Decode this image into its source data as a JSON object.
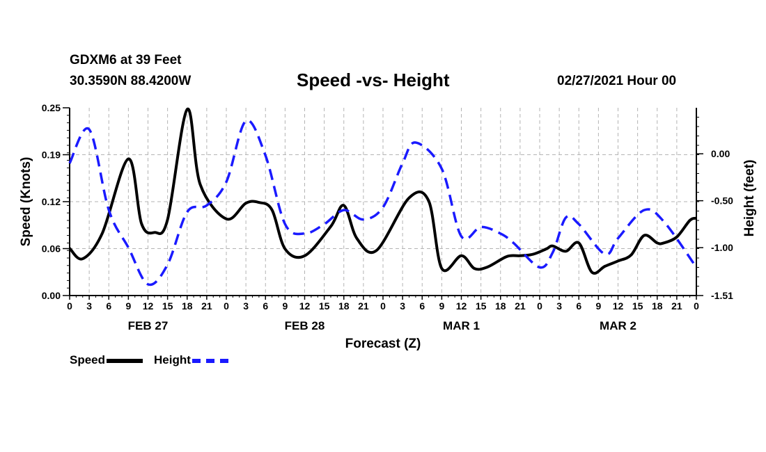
{
  "header": {
    "station": "GDXM6 at 39 Feet",
    "coords": "30.3590N 88.4200W",
    "title": "Speed -vs- Height",
    "datehour": "02/27/2021 Hour 00"
  },
  "legend": {
    "speed": "Speed",
    "height": "Height"
  },
  "colors": {
    "speed": "#000000",
    "height": "#1a1aff",
    "grid": "#b3b3b3"
  },
  "chart_data": {
    "type": "line",
    "title": "Speed -vs- Height",
    "xlabel": "Forecast (Z)",
    "ylabel_left": "Speed (Knots)",
    "ylabel_right": "Height (feet)",
    "x_range_hours": [
      0,
      96
    ],
    "x_tick_labels": [
      "0",
      "3",
      "6",
      "9",
      "12",
      "15",
      "18",
      "21",
      "0",
      "3",
      "6",
      "9",
      "12",
      "15",
      "18",
      "21",
      "0",
      "3",
      "6",
      "9",
      "12",
      "15",
      "18",
      "21",
      "0",
      "3",
      "6",
      "9",
      "12",
      "15",
      "18",
      "21",
      "0"
    ],
    "date_labels": [
      {
        "label": "FEB 27",
        "hour": 12
      },
      {
        "label": "FEB 28",
        "hour": 36
      },
      {
        "label": "MAR 1",
        "hour": 60
      },
      {
        "label": "MAR 2",
        "hour": 84
      }
    ],
    "left_axis": {
      "min": 0.0,
      "max": 0.25,
      "ticks": [
        "0.00",
        "0.06",
        "0.12",
        "0.19",
        "0.25"
      ],
      "tick_values": [
        0.0,
        0.0625,
        0.125,
        0.1875,
        0.25
      ]
    },
    "right_axis": {
      "min": -1.51,
      "max": 0.49,
      "ticks": [
        "0.00",
        "-0.50",
        "-1.00",
        "-1.51"
      ],
      "tick_values": [
        0.0,
        -0.5,
        -1.0,
        -1.51
      ]
    },
    "grid": true,
    "series": [
      {
        "name": "Speed",
        "axis": "left",
        "style": "solid",
        "x": [
          0,
          2,
          5,
          9,
          11,
          13,
          15,
          18,
          20,
          24,
          27,
          29,
          31,
          33,
          36,
          40,
          42,
          44,
          47,
          52,
          55,
          57,
          60,
          62,
          64,
          67,
          69,
          71,
          73,
          74,
          76,
          78,
          80,
          82,
          84,
          86,
          88,
          90,
          91,
          93,
          95,
          96
        ],
        "y": [
          0.063,
          0.049,
          0.083,
          0.182,
          0.096,
          0.084,
          0.101,
          0.248,
          0.148,
          0.102,
          0.123,
          0.124,
          0.114,
          0.062,
          0.053,
          0.092,
          0.12,
          0.076,
          0.06,
          0.13,
          0.126,
          0.036,
          0.053,
          0.036,
          0.038,
          0.052,
          0.053,
          0.055,
          0.062,
          0.066,
          0.059,
          0.07,
          0.031,
          0.039,
          0.046,
          0.054,
          0.08,
          0.07,
          0.07,
          0.078,
          0.1,
          0.103
        ]
      },
      {
        "name": "Height",
        "axis": "right",
        "style": "dashed",
        "x": [
          0,
          3,
          6,
          9,
          12,
          15,
          18,
          21,
          24,
          27,
          30,
          33,
          36,
          39,
          42,
          45,
          48,
          51,
          53,
          57,
          60,
          63,
          66,
          68,
          72,
          74,
          76,
          78,
          82,
          84,
          88,
          91,
          96
        ],
        "y": [
          -0.1,
          0.26,
          -0.6,
          -1.0,
          -1.39,
          -1.18,
          -0.62,
          -0.55,
          -0.3,
          0.35,
          -0.02,
          -0.75,
          -0.85,
          -0.75,
          -0.6,
          -0.7,
          -0.57,
          -0.1,
          0.12,
          -0.16,
          -0.88,
          -0.78,
          -0.85,
          -0.95,
          -1.21,
          -1.05,
          -0.68,
          -0.75,
          -1.07,
          -0.9,
          -0.6,
          -0.72,
          -1.21
        ]
      }
    ]
  }
}
